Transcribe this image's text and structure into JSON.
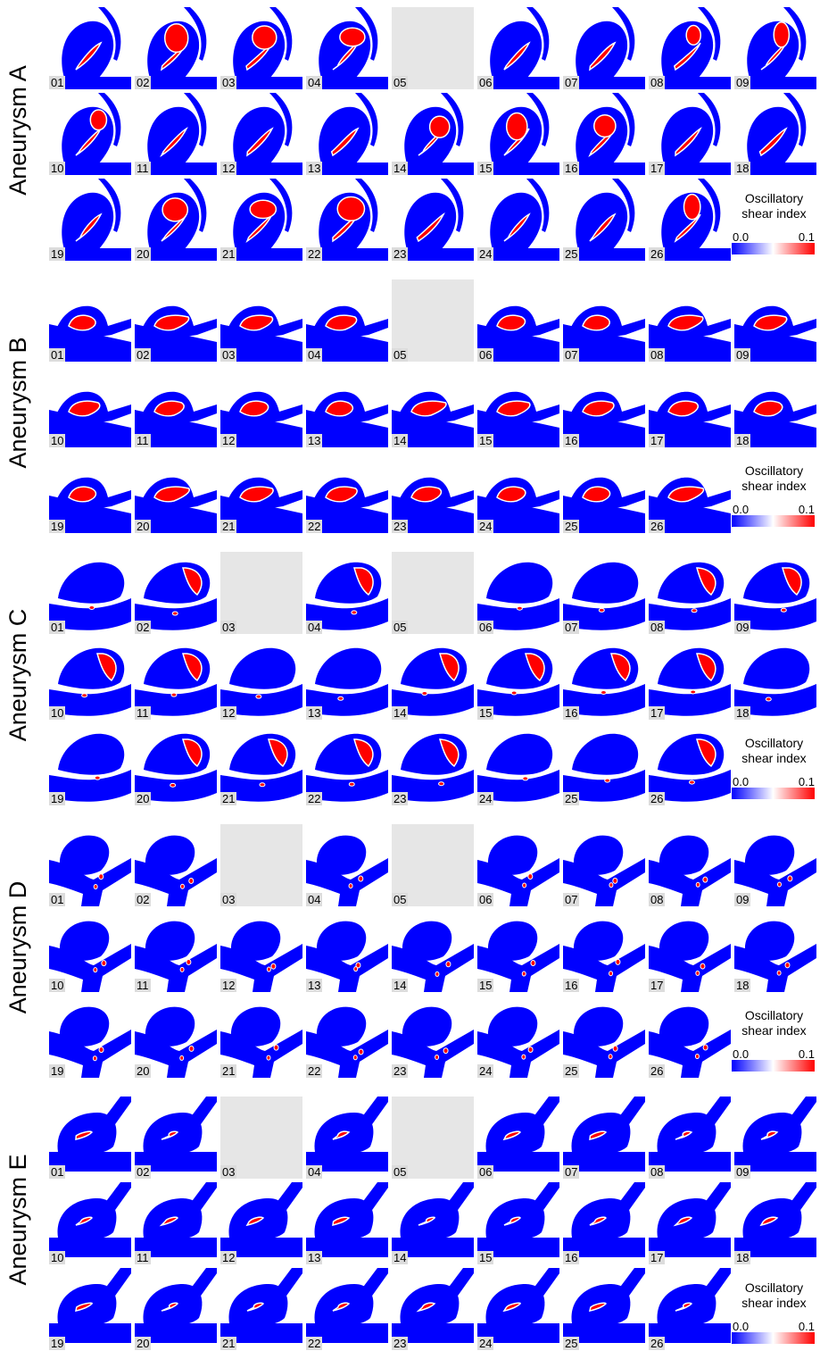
{
  "groups": [
    {
      "label": "Aneurysm A",
      "missing": [
        "05"
      ],
      "style": "A"
    },
    {
      "label": "Aneurysm B",
      "missing": [
        "05"
      ],
      "style": "B"
    },
    {
      "label": "Aneurysm C",
      "missing": [
        "03",
        "05"
      ],
      "style": "C"
    },
    {
      "label": "Aneurysm D",
      "missing": [
        "03",
        "05"
      ],
      "style": "D"
    },
    {
      "label": "Aneurysm E",
      "missing": [
        "03",
        "05"
      ],
      "style": "E"
    }
  ],
  "cases": [
    "01",
    "02",
    "03",
    "04",
    "05",
    "06",
    "07",
    "08",
    "09",
    "10",
    "11",
    "12",
    "13",
    "14",
    "15",
    "16",
    "17",
    "18",
    "19",
    "20",
    "21",
    "22",
    "23",
    "24",
    "25",
    "26"
  ],
  "legend": {
    "title_line1": "Oscillatory",
    "title_line2": "shear index",
    "min": "0.0",
    "max": "0.1"
  },
  "colors": {
    "low": "#0000ff",
    "mid": "#ffffff",
    "high": "#ff0000",
    "missing_panel": "#e6e6e6",
    "label_box": "#dcdcdc"
  }
}
